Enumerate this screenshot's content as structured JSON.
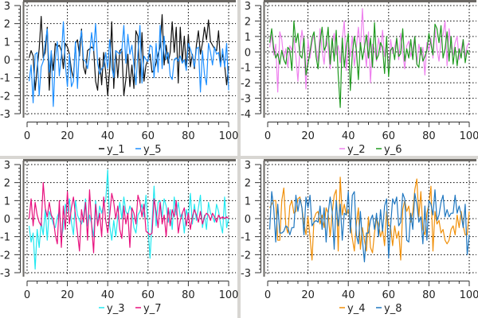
{
  "chart_data": [
    {
      "type": "line",
      "xlim": [
        0,
        100
      ],
      "ylim": [
        -3,
        3
      ],
      "xticks": [
        0,
        20,
        40,
        60,
        80,
        100
      ],
      "yticks": [
        3,
        2,
        1,
        0,
        -1,
        -2,
        -3
      ],
      "grid": true,
      "legend": "bottom",
      "series": [
        {
          "name": "y_1",
          "color": "#111111",
          "values": [
            0.1,
            0.5,
            0.2,
            -1.7,
            -0.5,
            0.6,
            2.4,
            0.1,
            0.4,
            1.8,
            -1.7,
            0.4,
            -0.6,
            0.9,
            0.7,
            0.8,
            0.5,
            -0.5,
            0.9,
            0.7,
            0.3,
            -0.6,
            -1.0,
            0.9,
            1.1,
            0.2,
            1.7,
            -0.4,
            -0.8,
            0.5,
            0.6,
            0.7,
            0.6,
            -1.2,
            -1.7,
            0.1,
            -1.4,
            0.4,
            -0.7,
            -2.0,
            -0.5,
            2.1,
            -1.6,
            0.5,
            -1.0,
            0.5,
            0.6,
            -2.0,
            -1.1,
            0.3,
            -1.5,
            -0.3,
            -1.6,
            1.6,
            1.3,
            -1.3,
            1.5,
            -1.2,
            -0.3,
            0.0,
            0.3,
            -0.7,
            -0.6,
            -0.2,
            0.3,
            0.7,
            2.5,
            -0.3,
            0.8,
            -0.2,
            0.4,
            2.1,
            0.4,
            1.8,
            -1.3,
            1.8,
            -0.1,
            1.3,
            -0.5,
            1.4,
            -0.4,
            0.3,
            -0.5,
            0.8,
            1.6,
            0.3,
            0.9,
            1.8,
            1.1,
            2.2,
            1.0,
            0.8,
            0.6,
            0.5,
            1.6,
            -0.2,
            0.3,
            -0.3,
            -1.4,
            -0.4
          ]
        },
        {
          "name": "y_5",
          "color": "#1e8fff",
          "values": [
            -1.2,
            -0.3,
            -2.4,
            0.3,
            0.4,
            -2.0,
            -0.4,
            -0.1,
            0.9,
            1.7,
            -0.7,
            0.5,
            -2.6,
            0.0,
            1.0,
            -0.9,
            0.2,
            2.1,
            -0.3,
            -1.5,
            0.3,
            -1.5,
            -1.2,
            1.0,
            -1.6,
            0.8,
            1.6,
            0.0,
            -0.1,
            -0.5,
            0.3,
            1.5,
            0.5,
            2.0,
            -0.2,
            -0.8,
            -0.5,
            -0.4,
            0.4,
            -0.5,
            1.1,
            -0.4,
            -1.0,
            0.5,
            0.4,
            0.3,
            0.5,
            1.9,
            -0.2,
            1.4,
            0.3,
            0.8,
            -0.3,
            -1.4,
            0.4,
            1.9,
            -1.3,
            0.2,
            0.0,
            -0.1,
            0.8,
            0.7,
            -1.0,
            0.9,
            -0.7,
            1.9,
            -0.5,
            1.3,
            0.0,
            0.4,
            -0.9,
            -1.1,
            0.0,
            0.1,
            -0.1,
            0.2,
            -0.2,
            0.0,
            -0.6,
            0.9,
            0.6,
            0.2,
            -0.4,
            0.6,
            0.7,
            -1.8,
            0.5,
            -0.8,
            -1.4,
            0.9,
            0.4,
            -0.3,
            0.7,
            0.3,
            0.4,
            -0.4,
            0.6,
            -0.4,
            0.9,
            -1.7
          ]
        }
      ]
    },
    {
      "type": "line",
      "xlim": [
        0,
        100
      ],
      "ylim": [
        -4,
        3
      ],
      "xticks": [
        0,
        20,
        40,
        60,
        80,
        100
      ],
      "yticks": [
        3,
        2,
        1,
        0,
        -1,
        -2,
        -3,
        -4
      ],
      "grid": true,
      "legend": "bottom",
      "series": [
        {
          "name": "y_2",
          "color": "#ee82ee",
          "values": [
            0.3,
            1.1,
            -0.2,
            0.5,
            -2.6,
            1.3,
            0.8,
            -0.5,
            0.2,
            -1.0,
            0.4,
            0.1,
            0.9,
            -0.3,
            -1.9,
            0.2,
            1.4,
            0.4,
            -2.4,
            0.8,
            -0.4,
            0.6,
            1.1,
            0.2,
            -0.6,
            1.5,
            0.1,
            -0.8,
            0.9,
            0.3,
            -1.1,
            0.5,
            1.2,
            -0.2,
            0.4,
            -0.7,
            0.8,
            2.0,
            -1.2,
            0.6,
            -0.3,
            1.0,
            -0.9,
            0.3,
            1.6,
            0.1,
            2.8,
            0.4,
            -1.0,
            1.3,
            -2.0,
            0.5,
            0.2,
            -0.6,
            0.9,
            0.1,
            1.4,
            -0.3,
            0.6,
            -1.2,
            0.8,
            -0.1,
            0.3,
            0.9,
            -0.5,
            1.2,
            0.0,
            -1.1,
            0.4,
            0.7,
            -0.3,
            0.2,
            1.0,
            -0.8,
            0.5,
            -0.2,
            0.3,
            -1.5,
            0.6,
            0.1,
            0.9,
            -0.4,
            1.6,
            0.2,
            -0.6,
            0.8,
            1.1,
            2.0,
            -0.9,
            1.5,
            0.3,
            -0.2,
            0.6,
            1.0,
            -0.5,
            0.2,
            0.8,
            -0.3,
            0.4,
            0.6
          ]
        },
        {
          "name": "y_6",
          "color": "#1f9a1f",
          "values": [
            0.6,
            1.5,
            0.2,
            -0.4,
            -0.1,
            -0.8,
            0.1,
            -0.5,
            -0.8,
            0.3,
            0.1,
            -1.2,
            2.0,
            0.6,
            1.2,
            -0.2,
            -0.4,
            0.9,
            -1.5,
            -0.8,
            0.0,
            0.9,
            1.3,
            -0.3,
            -1.1,
            0.6,
            1.6,
            0.1,
            0.4,
            1.6,
            -0.8,
            0.9,
            -0.6,
            1.4,
            -1.5,
            -3.6,
            0.9,
            -1.0,
            0.3,
            1.2,
            -2.5,
            -0.1,
            1.0,
            0.1,
            -1.8,
            0.6,
            -0.5,
            0.3,
            1.1,
            -0.4,
            0.9,
            -1.0,
            1.9,
            -0.5,
            -0.2,
            0.6,
            0.3,
            -1.4,
            1.0,
            -1.6,
            0.1,
            0.3,
            -0.5,
            0.9,
            -0.3,
            -0.1,
            1.5,
            -0.6,
            0.2,
            -0.4,
            0.8,
            -0.5,
            1.0,
            -0.8,
            -1.0,
            0.3,
            -0.6,
            -0.3,
            0.1,
            1.2,
            0.5,
            -0.2,
            1.8,
            1.5,
            0.6,
            1.7,
            -0.4,
            0.2,
            1.3,
            -0.6,
            1.0,
            -0.8,
            0.3,
            -0.9,
            0.2,
            -0.4,
            0.8,
            -0.7,
            0.1,
            -0.2
          ]
        }
      ]
    },
    {
      "type": "line",
      "xlim": [
        0,
        100
      ],
      "ylim": [
        -3,
        3
      ],
      "xticks": [
        0,
        20,
        40,
        60,
        80,
        100
      ],
      "yticks": [
        3,
        2,
        1,
        0,
        -1,
        -2,
        -3
      ],
      "grid": true,
      "legend": "bottom",
      "series": [
        {
          "name": "y_3",
          "color": "#22e8f0",
          "values": [
            -0.4,
            -1.3,
            -0.8,
            -2.8,
            -0.6,
            -1.6,
            -0.2,
            -0.9,
            0.5,
            -1.2,
            0.4,
            0.1,
            -0.3,
            -0.5,
            0.1,
            0.4,
            -1.1,
            -0.5,
            0.8,
            0.4,
            1.1,
            -0.2,
            -0.9,
            1.0,
            0.2,
            -0.1,
            -0.3,
            0.1,
            1.1,
            -0.4,
            0.2,
            -0.3,
            -1.0,
            1.0,
            -0.3,
            0.7,
            0.3,
            0.8,
            1.0,
            2.7,
            -0.4,
            -1.2,
            -0.1,
            -1.0,
            0.1,
            0.9,
            0.0,
            1.2,
            0.4,
            0.2,
            0.7,
            0.4,
            -0.5,
            -0.8,
            0.2,
            0.4,
            0.8,
            0.1,
            1.3,
            -0.4,
            -2.2,
            -0.2,
            1.8,
            -0.4,
            0.9,
            1.0,
            0.1,
            1.1,
            0.7,
            -0.2,
            0.5,
            -0.6,
            1.2,
            0.2,
            0.9,
            0.1,
            0.3,
            -0.8,
            0.5,
            0.0,
            1.4,
            -0.3,
            0.8,
            -0.1,
            0.6,
            1.3,
            -0.5,
            0.2,
            -0.6,
            0.9,
            0.3,
            0.1,
            -0.2,
            0.8,
            0.4,
            -0.3,
            -0.8,
            1.2,
            -0.5,
            0.0
          ]
        },
        {
          "name": "y_7",
          "color": "#e8107e",
          "values": [
            0.0,
            1.1,
            -0.4,
            0.9,
            0.2,
            -0.2,
            -0.4,
            2.0,
            0.6,
            0.1,
            0.9,
            0.2,
            0.0,
            -0.9,
            -1.4,
            1.0,
            -1.6,
            0.7,
            -0.6,
            1.5,
            -0.3,
            0.6,
            1.2,
            0.2,
            -0.8,
            -1.8,
            0.5,
            -0.2,
            0.9,
            -1.2,
            1.6,
            -0.3,
            -1.9,
            0.8,
            -0.4,
            0.3,
            -1.0,
            1.2,
            -0.1,
            -0.8,
            0.2,
            1.4,
            0.9,
            0.0,
            0.7,
            -0.6,
            -1.1,
            0.7,
            -0.3,
            0.3,
            -1.6,
            0.6,
            0.3,
            -0.3,
            1.3,
            0.9,
            0.1,
            0.8,
            -0.7,
            -0.8,
            -0.9,
            -0.8,
            1.1,
            0.4,
            -0.5,
            0.9,
            -0.3,
            0.2,
            -1.0,
            0.6,
            -0.4,
            0.5,
            0.1,
            1.0,
            -0.8,
            -0.1,
            0.3,
            0.6,
            -0.4,
            0.3,
            -0.6,
            0.1,
            0.5,
            0.2,
            -0.2,
            0.4,
            -0.3,
            0.1,
            0.3,
            0.2,
            -0.1,
            0.3,
            0.1,
            -0.2,
            0.2,
            0.0,
            0.1,
            0.0,
            0.1,
            0.0
          ]
        }
      ]
    },
    {
      "type": "line",
      "xlim": [
        0,
        100
      ],
      "ylim": [
        -3,
        3
      ],
      "xticks": [
        0,
        20,
        40,
        60,
        80,
        100
      ],
      "yticks": [
        3,
        2,
        1,
        0,
        -1,
        -2,
        -3
      ],
      "grid": true,
      "legend": "bottom",
      "series": [
        {
          "name": "y_4",
          "color": "#f0900a",
          "values": [
            0.6,
            0.8,
            1.0,
            1.0,
            -1.2,
            -1.2,
            1.0,
            1.7,
            -0.4,
            -0.8,
            0.7,
            1.0,
            0.3,
            0.4,
            1.1,
            1.2,
            0.6,
            -0.3,
            -0.9,
            0.1,
            -1.0,
            -2.3,
            0.0,
            0.3,
            0.4,
            -0.3,
            0.2,
            -0.5,
            0.6,
            0.3,
            -1.0,
            0.3,
            1.3,
            1.6,
            -1.8,
            2.3,
            0.2,
            0.8,
            0.2,
            0.5,
            -0.2,
            -1.1,
            -1.8,
            -0.3,
            0.6,
            -1.7,
            -0.5,
            -1.2,
            -1.8,
            0.1,
            -1.6,
            -1.9,
            -0.8,
            0.0,
            -0.3,
            -1.0,
            -0.6,
            -1.5,
            0.4,
            -0.3,
            -0.5,
            -1.5,
            -0.4,
            -1.1,
            -0.7,
            -2.3,
            0.5,
            1.0,
            0.4,
            0.7,
            -0.2,
            0.4,
            1.6,
            2.2,
            0.1,
            1.5,
            -0.6,
            -0.9,
            0.3,
            0.8,
            1.8,
            -1.8,
            0.4,
            -0.3,
            -0.1,
            -0.8,
            -0.6,
            -1.2,
            -1.4,
            -1.2,
            -0.6,
            -0.4,
            -0.9,
            0.2,
            -0.5,
            0.4,
            -0.4,
            -0.9,
            -0.9,
            0.4
          ]
        },
        {
          "name": "y_8",
          "color": "#1f77c0",
          "values": [
            -0.6,
            1.5,
            0.6,
            -1.3,
            0.8,
            -0.8,
            -0.8,
            -0.7,
            -0.4,
            -0.5,
            -0.9,
            -0.5,
            -0.5,
            1.3,
            0.4,
            1.1,
            0.6,
            -0.9,
            1.2,
            0.6,
            1.3,
            -0.4,
            -0.2,
            -0.1,
            -0.2,
            0.7,
            -0.6,
            0.6,
            -1.3,
            0.3,
            1.2,
            0.4,
            -1.7,
            1.0,
            -0.4,
            0.8,
            -1.2,
            0.3,
            0.2,
            1.5,
            -0.8,
            1.3,
            1.5,
            -0.9,
            -1.4,
            0.4,
            -1.2,
            -2.4,
            -0.8,
            -0.8,
            -0.1,
            0.2,
            -0.6,
            0.3,
            -1.0,
            0.5,
            -0.7,
            0.7,
            1.1,
            -2.2,
            -0.4,
            1.1,
            0.8,
            1.2,
            -0.4,
            -0.2,
            1.4,
            1.1,
            -1.2,
            -1.3,
            0.3,
            -0.6,
            1.4,
            0.8,
            -0.2,
            0.1,
            -1.4,
            0.7,
            -1.2,
            1.0,
            0.8,
            0.2,
            1.6,
            -0.1,
            0.2,
            0.9,
            1.3,
            0.1,
            0.5,
            0.1,
            0.3,
            0.3,
            1.3,
            0.3,
            0.7,
            0.2,
            -0.5,
            0.8,
            -2.0,
            -0.9
          ]
        }
      ]
    }
  ]
}
